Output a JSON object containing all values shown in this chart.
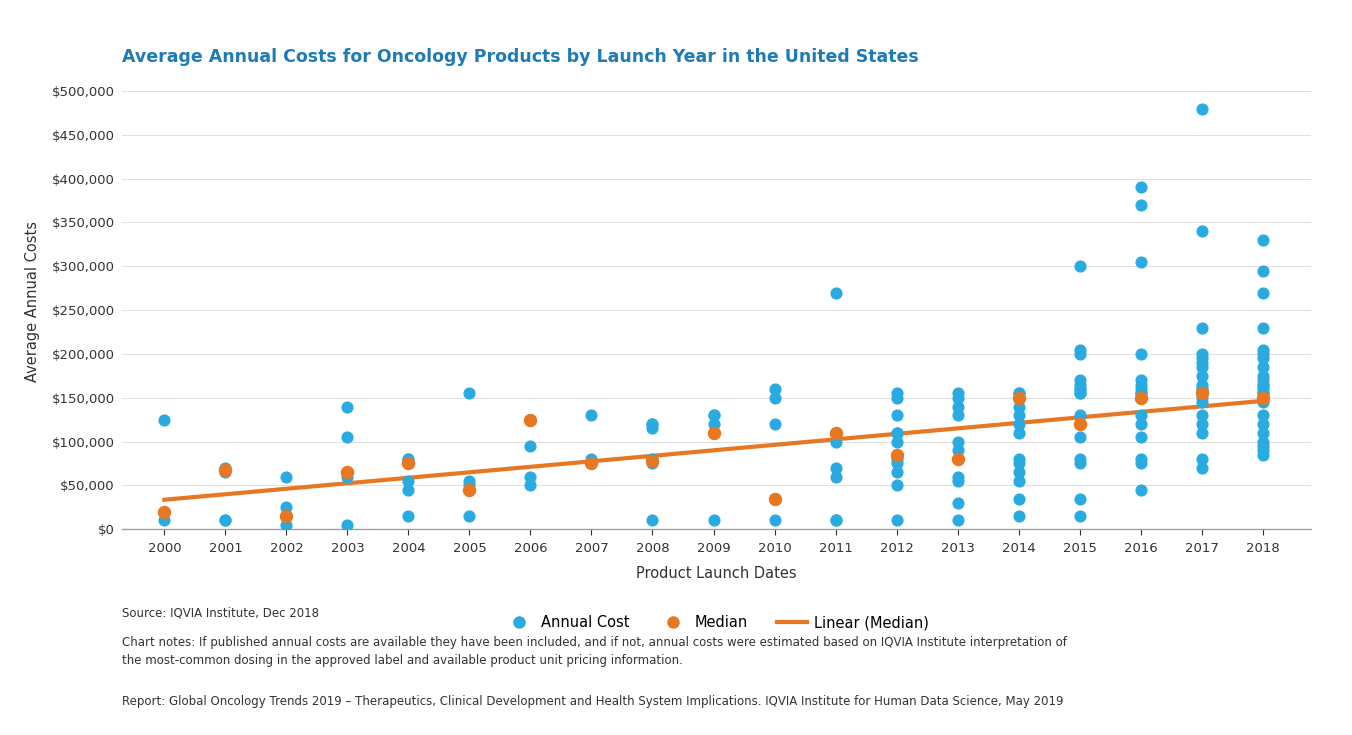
{
  "title": "Average Annual Costs for Oncology Products by Launch Year in the United States",
  "xlabel": "Product Launch Dates",
  "ylabel": "Average Annual Costs",
  "title_color": "#1F7BB6",
  "axis_color": "#A0A0A0",
  "background_color": "#ffffff",
  "blue_color": "#29ABE2",
  "orange_color": "#E87722",
  "annual_costs": [
    [
      2000,
      125000
    ],
    [
      2000,
      10000
    ],
    [
      2001,
      65000
    ],
    [
      2001,
      70000
    ],
    [
      2001,
      10000
    ],
    [
      2001,
      10000
    ],
    [
      2002,
      25000
    ],
    [
      2002,
      15000
    ],
    [
      2002,
      60000
    ],
    [
      2002,
      5000
    ],
    [
      2003,
      140000
    ],
    [
      2003,
      105000
    ],
    [
      2003,
      60000
    ],
    [
      2003,
      65000
    ],
    [
      2003,
      5000
    ],
    [
      2004,
      80000
    ],
    [
      2004,
      80000
    ],
    [
      2004,
      75000
    ],
    [
      2004,
      55000
    ],
    [
      2004,
      45000
    ],
    [
      2004,
      15000
    ],
    [
      2005,
      155000
    ],
    [
      2005,
      55000
    ],
    [
      2005,
      50000
    ],
    [
      2005,
      15000
    ],
    [
      2006,
      125000
    ],
    [
      2006,
      125000
    ],
    [
      2006,
      95000
    ],
    [
      2006,
      60000
    ],
    [
      2006,
      50000
    ],
    [
      2007,
      75000
    ],
    [
      2007,
      75000
    ],
    [
      2007,
      80000
    ],
    [
      2007,
      130000
    ],
    [
      2008,
      120000
    ],
    [
      2008,
      120000
    ],
    [
      2008,
      115000
    ],
    [
      2008,
      75000
    ],
    [
      2008,
      80000
    ],
    [
      2008,
      10000
    ],
    [
      2009,
      130000
    ],
    [
      2009,
      130000
    ],
    [
      2009,
      110000
    ],
    [
      2009,
      120000
    ],
    [
      2009,
      10000
    ],
    [
      2010,
      160000
    ],
    [
      2010,
      150000
    ],
    [
      2010,
      120000
    ],
    [
      2010,
      35000
    ],
    [
      2010,
      10000
    ],
    [
      2011,
      270000
    ],
    [
      2011,
      110000
    ],
    [
      2011,
      110000
    ],
    [
      2011,
      110000
    ],
    [
      2011,
      100000
    ],
    [
      2011,
      70000
    ],
    [
      2011,
      60000
    ],
    [
      2011,
      10000
    ],
    [
      2011,
      10000
    ],
    [
      2012,
      155000
    ],
    [
      2012,
      150000
    ],
    [
      2012,
      130000
    ],
    [
      2012,
      110000
    ],
    [
      2012,
      110000
    ],
    [
      2012,
      100000
    ],
    [
      2012,
      80000
    ],
    [
      2012,
      75000
    ],
    [
      2012,
      65000
    ],
    [
      2012,
      50000
    ],
    [
      2012,
      10000
    ],
    [
      2013,
      155000
    ],
    [
      2013,
      150000
    ],
    [
      2013,
      140000
    ],
    [
      2013,
      130000
    ],
    [
      2013,
      100000
    ],
    [
      2013,
      90000
    ],
    [
      2013,
      60000
    ],
    [
      2013,
      55000
    ],
    [
      2013,
      30000
    ],
    [
      2013,
      10000
    ],
    [
      2014,
      155000
    ],
    [
      2014,
      155000
    ],
    [
      2014,
      140000
    ],
    [
      2014,
      130000
    ],
    [
      2014,
      120000
    ],
    [
      2014,
      110000
    ],
    [
      2014,
      80000
    ],
    [
      2014,
      75000
    ],
    [
      2014,
      65000
    ],
    [
      2014,
      55000
    ],
    [
      2014,
      35000
    ],
    [
      2014,
      15000
    ],
    [
      2015,
      300000
    ],
    [
      2015,
      205000
    ],
    [
      2015,
      200000
    ],
    [
      2015,
      170000
    ],
    [
      2015,
      165000
    ],
    [
      2015,
      160000
    ],
    [
      2015,
      160000
    ],
    [
      2015,
      155000
    ],
    [
      2015,
      155000
    ],
    [
      2015,
      130000
    ],
    [
      2015,
      120000
    ],
    [
      2015,
      105000
    ],
    [
      2015,
      80000
    ],
    [
      2015,
      75000
    ],
    [
      2015,
      35000
    ],
    [
      2015,
      15000
    ],
    [
      2016,
      390000
    ],
    [
      2016,
      370000
    ],
    [
      2016,
      305000
    ],
    [
      2016,
      200000
    ],
    [
      2016,
      170000
    ],
    [
      2016,
      165000
    ],
    [
      2016,
      160000
    ],
    [
      2016,
      155000
    ],
    [
      2016,
      155000
    ],
    [
      2016,
      150000
    ],
    [
      2016,
      130000
    ],
    [
      2016,
      120000
    ],
    [
      2016,
      105000
    ],
    [
      2016,
      80000
    ],
    [
      2016,
      75000
    ],
    [
      2016,
      45000
    ],
    [
      2017,
      480000
    ],
    [
      2017,
      340000
    ],
    [
      2017,
      230000
    ],
    [
      2017,
      200000
    ],
    [
      2017,
      195000
    ],
    [
      2017,
      190000
    ],
    [
      2017,
      185000
    ],
    [
      2017,
      175000
    ],
    [
      2017,
      165000
    ],
    [
      2017,
      160000
    ],
    [
      2017,
      160000
    ],
    [
      2017,
      155000
    ],
    [
      2017,
      155000
    ],
    [
      2017,
      150000
    ],
    [
      2017,
      145000
    ],
    [
      2017,
      130000
    ],
    [
      2017,
      120000
    ],
    [
      2017,
      110000
    ],
    [
      2017,
      80000
    ],
    [
      2017,
      70000
    ],
    [
      2018,
      330000
    ],
    [
      2018,
      295000
    ],
    [
      2018,
      270000
    ],
    [
      2018,
      230000
    ],
    [
      2018,
      205000
    ],
    [
      2018,
      200000
    ],
    [
      2018,
      195000
    ],
    [
      2018,
      185000
    ],
    [
      2018,
      175000
    ],
    [
      2018,
      170000
    ],
    [
      2018,
      165000
    ],
    [
      2018,
      165000
    ],
    [
      2018,
      160000
    ],
    [
      2018,
      155000
    ],
    [
      2018,
      155000
    ],
    [
      2018,
      150000
    ],
    [
      2018,
      145000
    ],
    [
      2018,
      130000
    ],
    [
      2018,
      120000
    ],
    [
      2018,
      110000
    ],
    [
      2018,
      100000
    ],
    [
      2018,
      95000
    ],
    [
      2018,
      90000
    ],
    [
      2018,
      85000
    ]
  ],
  "median_costs": [
    [
      2000,
      20000
    ],
    [
      2001,
      67000
    ],
    [
      2002,
      15000
    ],
    [
      2003,
      65000
    ],
    [
      2004,
      75000
    ],
    [
      2005,
      45000
    ],
    [
      2006,
      125000
    ],
    [
      2007,
      75000
    ],
    [
      2008,
      78000
    ],
    [
      2009,
      110000
    ],
    [
      2010,
      35000
    ],
    [
      2011,
      110000
    ],
    [
      2012,
      85000
    ],
    [
      2013,
      80000
    ],
    [
      2014,
      150000
    ],
    [
      2015,
      120000
    ],
    [
      2016,
      150000
    ],
    [
      2017,
      155000
    ],
    [
      2018,
      150000
    ]
  ],
  "ylim": [
    0,
    520000
  ],
  "xlim": [
    1999.3,
    2018.8
  ],
  "yticks": [
    0,
    50000,
    100000,
    150000,
    200000,
    250000,
    300000,
    350000,
    400000,
    450000,
    500000
  ],
  "xticks": [
    2000,
    2001,
    2002,
    2003,
    2004,
    2005,
    2006,
    2007,
    2008,
    2009,
    2010,
    2011,
    2012,
    2013,
    2014,
    2015,
    2016,
    2017,
    2018
  ],
  "legend_labels": [
    "Annual Cost",
    "Median",
    "Linear (Median)"
  ],
  "source_text": "Source: IQVIA Institute, Dec 2018",
  "note_text": "Chart notes: If published annual costs are available they have been included, and if not, annual costs were estimated based on IQVIA Institute interpretation of\nthe most-common dosing in the approved label and available product unit pricing information.",
  "report_text": "Report: Global Oncology Trends 2019 – Therapeutics, Clinical Development and Health System Implications. IQVIA Institute for Human Data Science, May 2019"
}
